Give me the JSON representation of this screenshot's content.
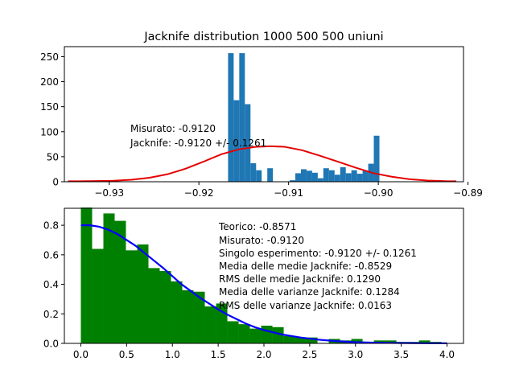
{
  "chart_data": [
    {
      "type": "bar",
      "title": "Jacknife distribution 1000 500 500 uniuni",
      "xlim": [
        -0.935,
        -0.8905
      ],
      "ylim": [
        0,
        270
      ],
      "xticks": [
        -0.93,
        -0.92,
        -0.91,
        -0.9,
        -0.89
      ],
      "xtick_labels": [
        "−0.93",
        "−0.92",
        "−0.91",
        "−0.90",
        "−0.89"
      ],
      "yticks": [
        0,
        50,
        100,
        150,
        200,
        250
      ],
      "ytick_labels": [
        "0",
        "50",
        "100",
        "150",
        "200",
        "250"
      ],
      "bar_color": "#1f77b4",
      "bars": {
        "bin_width": 0.000625,
        "left_edges": [
          -0.91675,
          -0.916125,
          -0.9155,
          -0.914875,
          -0.91425,
          -0.913625,
          -0.913,
          -0.912375,
          -0.91175,
          -0.911125,
          -0.9105,
          -0.909875,
          -0.90925,
          -0.908625,
          -0.908,
          -0.907375,
          -0.90675,
          -0.906125,
          -0.9055,
          -0.904875,
          -0.90425,
          -0.903625,
          -0.903,
          -0.902375,
          -0.90175,
          -0.901125,
          -0.9005
        ],
        "values": [
          257,
          163,
          257,
          155,
          37,
          23,
          0,
          27,
          0,
          0,
          0,
          3,
          17,
          25,
          22,
          18,
          7,
          27,
          23,
          14,
          29,
          17,
          23,
          16,
          22,
          36,
          92
        ]
      },
      "curve": {
        "color": "#e50000",
        "x": [
          -0.9346,
          -0.9335,
          -0.9315,
          -0.9295,
          -0.9275,
          -0.9255,
          -0.9235,
          -0.9215,
          -0.9195,
          -0.9175,
          -0.9155,
          -0.9135,
          -0.912,
          -0.9105,
          -0.9085,
          -0.9065,
          -0.9045,
          -0.9025,
          -0.9005,
          -0.8985,
          -0.8965,
          -0.8945,
          -0.8925,
          -0.8913
        ],
        "y": [
          1,
          1,
          1.5,
          2,
          4,
          8,
          15,
          26,
          40,
          55,
          65,
          70,
          71,
          70,
          63,
          52,
          40,
          28,
          17,
          10,
          5,
          2.5,
          1.2,
          1
        ]
      },
      "annotations": [
        "Misurato: -0.9120",
        "Jacknife: -0.9120 +/-  0.1261"
      ]
    },
    {
      "type": "bar",
      "xlim": [
        -0.18,
        4.18
      ],
      "ylim": [
        0,
        0.915
      ],
      "xticks": [
        0,
        0.5,
        1,
        1.5,
        2,
        2.5,
        3,
        3.5,
        4
      ],
      "xtick_labels": [
        "0.0",
        "0.5",
        "1.0",
        "1.5",
        "2.0",
        "2.5",
        "3.0",
        "3.5",
        "4.0"
      ],
      "yticks": [
        0,
        0.2,
        0.4,
        0.6,
        0.8
      ],
      "ytick_labels": [
        "0.0",
        "0.2",
        "0.4",
        "0.6",
        "0.8"
      ],
      "bar_color": "#008000",
      "bars": {
        "bin_width": 0.1231,
        "values": [
          0.92,
          0.64,
          0.88,
          0.83,
          0.63,
          0.67,
          0.51,
          0.49,
          0.42,
          0.36,
          0.35,
          0.25,
          0.27,
          0.15,
          0.13,
          0.1,
          0.12,
          0.11,
          0.05,
          0.04,
          0.04,
          0.0,
          0.03,
          0.02,
          0.03,
          0.0,
          0.02,
          0.02,
          0.01,
          0.01,
          0.02,
          0.01
        ]
      },
      "curve": {
        "color": "#0000ff",
        "x": [
          0,
          0.1,
          0.2,
          0.3,
          0.4,
          0.5,
          0.6,
          0.7,
          0.8,
          0.9,
          1.0,
          1.1,
          1.2,
          1.3,
          1.4,
          1.5,
          1.6,
          1.7,
          1.8,
          1.9,
          2.0,
          2.2,
          2.4,
          2.6,
          2.8,
          3.0,
          3.2,
          3.4,
          3.6,
          3.8,
          4.0
        ],
        "y": [
          0.8,
          0.8,
          0.79,
          0.77,
          0.74,
          0.7,
          0.66,
          0.61,
          0.56,
          0.51,
          0.455,
          0.4,
          0.355,
          0.31,
          0.27,
          0.23,
          0.195,
          0.165,
          0.135,
          0.11,
          0.09,
          0.06,
          0.04,
          0.025,
          0.015,
          0.008,
          0.005,
          0.003,
          0.002,
          0.001,
          0.001
        ]
      },
      "annotations": [
        "Teorico: -0.8571",
        "Misurato: -0.9120",
        "Singolo esperimento: -0.9120 +/-  0.1261",
        "Media delle medie Jacknife: -0.8529",
        "RMS delle medie Jacknife:  0.1290",
        "Media delle varianze Jacknife:  0.1284",
        "RMS delle varianze Jacknife:  0.0163"
      ]
    }
  ]
}
